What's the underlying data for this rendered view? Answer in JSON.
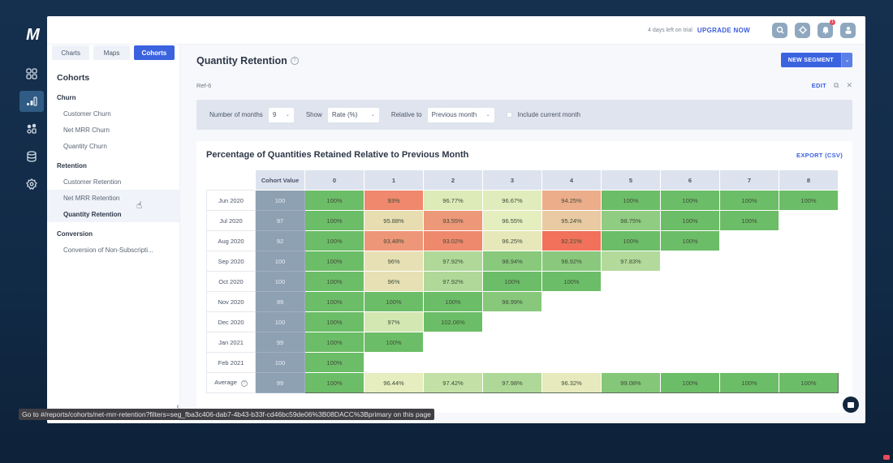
{
  "rail": {
    "logo": "M",
    "items": [
      {
        "name": "dashboard-icon"
      },
      {
        "name": "reports-icon",
        "active": true
      },
      {
        "name": "customers-icon"
      },
      {
        "name": "data-icon"
      },
      {
        "name": "settings-icon"
      }
    ]
  },
  "topbar": {
    "trial_text": "4 days left on trial",
    "upgrade_label": "UPGRADE NOW",
    "notification_count": "1"
  },
  "side": {
    "tabs": [
      {
        "label": "Charts",
        "active": false
      },
      {
        "label": "Maps",
        "active": false
      },
      {
        "label": "Cohorts",
        "active": true
      }
    ],
    "title": "Cohorts",
    "groups": [
      {
        "label": "Churn",
        "items": [
          "Customer Churn",
          "Net MRR Churn",
          "Quantity Churn"
        ]
      },
      {
        "label": "Retention",
        "items": [
          "Customer Retention",
          "Net MRR Retention",
          "Quantity Retention"
        ]
      },
      {
        "label": "Conversion",
        "items": [
          "Conversion of Non-Subscripti..."
        ]
      }
    ],
    "hovered_item": "Net MRR Retention",
    "selected_item": "Quantity Retention"
  },
  "page": {
    "title": "Quantity Retention",
    "ref": "Ref-6",
    "new_segment_label": "NEW SEGMENT",
    "edit_label": "EDIT"
  },
  "filters": {
    "months_label": "Number of months",
    "months_value": "9",
    "show_label": "Show",
    "show_value": "Rate (%)",
    "relative_label": "Relative to",
    "relative_value": "Previous month",
    "include_current_label": "Include current month",
    "include_current_checked": false
  },
  "card": {
    "title": "Percentage of Quantities Retained Relative to Previous Month",
    "export_label": "EXPORT (CSV)"
  },
  "chart_data": {
    "type": "heatmap",
    "title": "Percentage of Quantities Retained Relative to Previous Month",
    "cohort_value_header": "Cohort Value",
    "columns": [
      "0",
      "1",
      "2",
      "3",
      "4",
      "5",
      "6",
      "7",
      "8"
    ],
    "rows": [
      {
        "label": "Jun 2020",
        "cohort_value": "100",
        "values": [
          "100%",
          "93%",
          "96.77%",
          "96.67%",
          "94.25%",
          "100%",
          "100%",
          "100%",
          "100%"
        ]
      },
      {
        "label": "Jul 2020",
        "cohort_value": "97",
        "values": [
          "100%",
          "95.88%",
          "93.55%",
          "96.55%",
          "95.24%",
          "98.75%",
          "100%",
          "100%"
        ]
      },
      {
        "label": "Aug 2020",
        "cohort_value": "92",
        "values": [
          "100%",
          "93.48%",
          "93.02%",
          "96.25%",
          "92.21%",
          "100%",
          "100%"
        ]
      },
      {
        "label": "Sep 2020",
        "cohort_value": "100",
        "values": [
          "100%",
          "96%",
          "97.92%",
          "98.94%",
          "98.92%",
          "97.83%"
        ]
      },
      {
        "label": "Oct 2020",
        "cohort_value": "100",
        "values": [
          "100%",
          "96%",
          "97.92%",
          "100%",
          "100%"
        ]
      },
      {
        "label": "Nov 2020",
        "cohort_value": "99",
        "values": [
          "100%",
          "100%",
          "100%",
          "98.99%"
        ]
      },
      {
        "label": "Dec 2020",
        "cohort_value": "100",
        "values": [
          "100%",
          "97%",
          "102.06%"
        ]
      },
      {
        "label": "Jan 2021",
        "cohort_value": "99",
        "values": [
          "100%",
          "100%"
        ]
      },
      {
        "label": "Feb 2021",
        "cohort_value": "100",
        "values": [
          "100%"
        ]
      }
    ],
    "average": {
      "label": "Average",
      "cohort_value": "99",
      "values": [
        "100%",
        "96.44%",
        "97.42%",
        "97.98%",
        "96.32%",
        "99.08%",
        "100%",
        "100%",
        "100%"
      ]
    },
    "color_scale": {
      "low": "#f26b55",
      "mid": "#e6efc0",
      "high": "#6cbd67"
    }
  },
  "statusbar": {
    "text": "Go to #/reports/cohorts/net-mrr-retention?filters=seg_fba3c406-dab7-4b43-b33f-cd46bc59de06%3B08DACC%3Bprimary on this page"
  }
}
